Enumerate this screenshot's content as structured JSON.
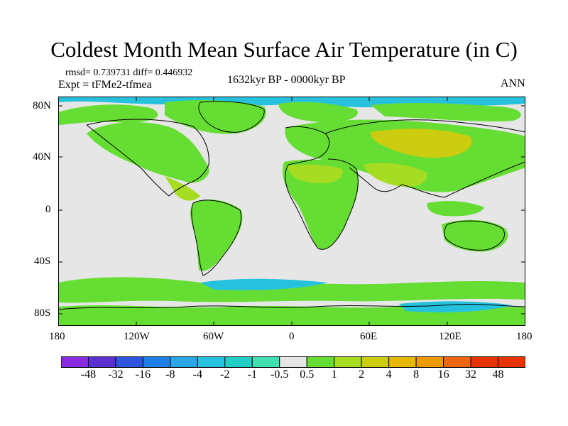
{
  "header": {
    "title": "Coldest Month Mean Surface Air Temperature (in C)",
    "stats": "rmsd= 0.739731 diff= 0.446932",
    "expt": "Expt = tFMe2-tfmea",
    "period": "1632kyr BP - 0000kyr BP",
    "season": "ANN"
  },
  "axes": {
    "lat_labels": [
      "80N",
      "40N",
      "0",
      "40S",
      "80S"
    ],
    "lon_labels": [
      "180",
      "120W",
      "60W",
      "0",
      "60E",
      "120E",
      "180"
    ]
  },
  "colorbar": {
    "labels": [
      "-48",
      "-32",
      "-16",
      "-8",
      "-4",
      "-2",
      "-1",
      "-0.5",
      "0.5",
      "1",
      "2",
      "4",
      "8",
      "16",
      "32",
      "48"
    ],
    "colors": [
      "#8a2be2",
      "#5a30d0",
      "#2f55e0",
      "#1e7fe6",
      "#2aa6e6",
      "#26c2dd",
      "#20d0c6",
      "#40e0b0",
      "#e6e6e6",
      "#66dd33",
      "#a6dd22",
      "#cccc11",
      "#e6b800",
      "#ee9900",
      "#ee6611",
      "#e63300"
    ]
  },
  "map": {
    "background_color": "#e6e6e6",
    "positive_color": "#66dd33",
    "strong_positive_color": "#a6dd22",
    "warm_color": "#cccc11",
    "negative_color": "#26c2dd"
  }
}
